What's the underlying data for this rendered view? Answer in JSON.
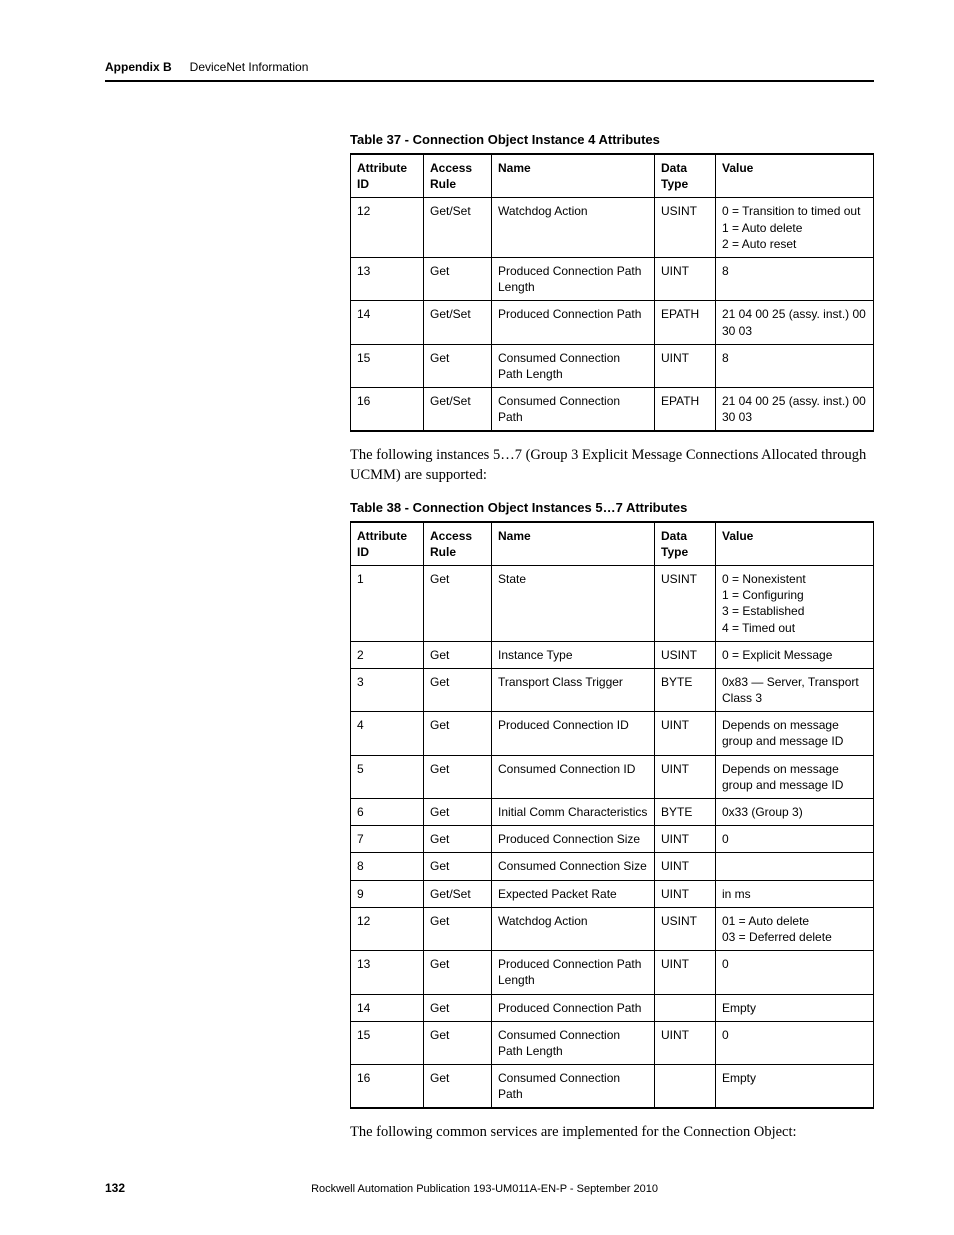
{
  "header": {
    "appendix": "Appendix B",
    "section": "DeviceNet Information"
  },
  "table37": {
    "caption": "Table 37 - Connection Object Instance 4 Attributes",
    "columns": [
      "Attribute ID",
      "Access Rule",
      "Name",
      "Data Type",
      "Value"
    ],
    "rows": [
      [
        "12",
        "Get/Set",
        "Watchdog Action",
        "USINT",
        "0 = Transition to timed out\n1 = Auto delete\n2 = Auto reset"
      ],
      [
        "13",
        "Get",
        "Produced Connection Path Length",
        "UINT",
        "8"
      ],
      [
        "14",
        "Get/Set",
        "Produced Connection Path",
        "EPATH",
        "21 04 00 25 (assy. inst.) 00 30 03"
      ],
      [
        "15",
        "Get",
        "Consumed Connection Path Length",
        "UINT",
        "8"
      ],
      [
        "16",
        "Get/Set",
        "Consumed Connection Path",
        "EPATH",
        "21 04 00 25 (assy. inst.) 00 30 03"
      ]
    ]
  },
  "para1": "The following instances 5…7 (Group 3 Explicit Message Connections Allocated through UCMM) are supported:",
  "table38": {
    "caption": "Table 38 - Connection Object Instances 5…7 Attributes",
    "columns": [
      "Attribute ID",
      "Access Rule",
      "Name",
      "Data Type",
      "Value"
    ],
    "rows": [
      [
        "1",
        "Get",
        "State",
        "USINT",
        "0 = Nonexistent\n1 = Configuring\n3 = Established\n4 = Timed out"
      ],
      [
        "2",
        "Get",
        "Instance Type",
        "USINT",
        "0 = Explicit Message"
      ],
      [
        "3",
        "Get",
        "Transport Class Trigger",
        "BYTE",
        "0x83 — Server, Transport Class 3"
      ],
      [
        "4",
        "Get",
        "Produced Connection ID",
        "UINT",
        "Depends on message group and message ID"
      ],
      [
        "5",
        "Get",
        "Consumed Connection ID",
        "UINT",
        "Depends on message group and message ID"
      ],
      [
        "6",
        "Get",
        "Initial Comm Characteristics",
        "BYTE",
        "0x33 (Group 3)"
      ],
      [
        "7",
        "Get",
        "Produced Connection Size",
        "UINT",
        "0"
      ],
      [
        "8",
        "Get",
        "Consumed Connection Size",
        "UINT",
        ""
      ],
      [
        "9",
        "Get/Set",
        "Expected Packet Rate",
        "UINT",
        "in ms"
      ],
      [
        "12",
        "Get",
        "Watchdog Action",
        "USINT",
        "01 = Auto delete\n03 = Deferred delete"
      ],
      [
        "13",
        "Get",
        "Produced Connection Path Length",
        "UINT",
        "0"
      ],
      [
        "14",
        "Get",
        "Produced Connection Path",
        "",
        "Empty"
      ],
      [
        "15",
        "Get",
        "Consumed Connection Path Length",
        "UINT",
        "0"
      ],
      [
        "16",
        "Get",
        "Consumed Connection Path",
        "",
        "Empty"
      ]
    ]
  },
  "para2": "The following common services are implemented for the Connection Object:",
  "footer": {
    "pagenum": "132",
    "pubinfo": "Rockwell Automation Publication 193-UM011A-EN-P - September 2010"
  }
}
